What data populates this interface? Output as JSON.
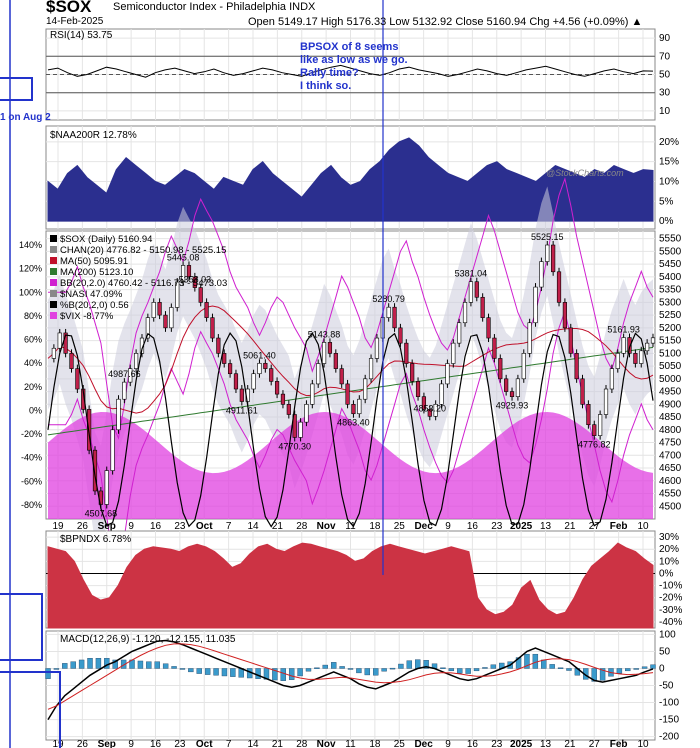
{
  "header": {
    "symbol": "$SOX",
    "name": "Semiconductor Index - Philadelphia  INDX",
    "date": "14-Feb-2025",
    "ohlc": "Open 5149.17  High 5176.33  Low 5132.92  Close 5160.94  Chg +4.56 (+0.09%) ▲"
  },
  "watermark": "@StockCharts.com",
  "annotation": {
    "lines": [
      "BPSOX of 8 seems",
      "like as low as we go.",
      "Rally time?",
      "I think so."
    ],
    "side_note": "1 on Aug 2"
  },
  "colors": {
    "rsi": "#000000",
    "naa": "#2b2f8f",
    "sox_line": "#000000",
    "bull_candle": "#ffffff",
    "bear_candle": "#c0204a",
    "ma50": "#c0102a",
    "ma200": "#2f7a2f",
    "bb": "#d020d0",
    "channel_fill": "#ccccdd",
    "nasi": "#aaaaaa",
    "vix": "#e040e0",
    "bpndx": "#cc3344",
    "macd_hist": "#3a9acb",
    "annot_blue": "#2233cc"
  },
  "x_axis": {
    "labels": [
      "19",
      "26",
      "Sep",
      "9",
      "16",
      "23",
      "Oct",
      "7",
      "14",
      "21",
      "28",
      "Nov",
      "11",
      "18",
      "25",
      "Dec",
      "9",
      "16",
      "23",
      "2025",
      "13",
      "21",
      "27",
      "Feb",
      "10"
    ],
    "bold": [
      "Sep",
      "Oct",
      "Nov",
      "Dec",
      "2025",
      "Feb"
    ]
  },
  "chart_data": [
    {
      "type": "line",
      "panel": "rsi",
      "legend": "RSI(14) 53.75",
      "ylim": [
        0,
        100
      ],
      "y_ticks": [
        10,
        30,
        50,
        70,
        90
      ],
      "reference_levels": [
        30,
        50,
        70
      ],
      "values": [
        55,
        57,
        52,
        48,
        50,
        54,
        58,
        56,
        53,
        50,
        47,
        52,
        55,
        57,
        54,
        51,
        53,
        56,
        52,
        49,
        51,
        54,
        57,
        55,
        52,
        50,
        48,
        52,
        55,
        58,
        60,
        57,
        54,
        51,
        49,
        52,
        56,
        58,
        55,
        53,
        51,
        48,
        50,
        53,
        56,
        54,
        51,
        49,
        52,
        55,
        57,
        59,
        56,
        53,
        50,
        48,
        51,
        54,
        56,
        53,
        51,
        54,
        53.75
      ]
    },
    {
      "type": "area",
      "panel": "naa200r",
      "legend": "$NAA200R 12.78%",
      "ylim": [
        -2,
        24
      ],
      "y_ticks": [
        0,
        5,
        10,
        15,
        20
      ],
      "values": [
        10,
        8,
        12,
        14,
        11,
        9,
        7,
        13,
        16,
        14,
        12,
        10,
        9,
        11,
        13,
        12,
        10,
        8,
        11,
        10,
        9,
        13,
        15,
        12,
        10,
        8,
        6,
        9,
        12,
        14,
        11,
        9,
        10,
        13,
        15,
        18,
        20,
        21,
        19,
        16,
        14,
        12,
        11,
        10,
        12,
        14,
        15,
        13,
        12,
        11,
        10,
        12,
        14,
        13,
        12,
        11,
        13,
        12,
        14,
        13,
        12,
        13,
        12.78
      ]
    },
    {
      "type": "line",
      "panel": "price",
      "legend": [
        "$SOX (Daily) 5160.94",
        "CHAN(20) 4776.82 - 5150.98 - 5525.15",
        "MA(50) 5095.91",
        "MA(200) 5123.10",
        "BB(20,2.0) 4760.42 - 5116.73 - 5473.03",
        "$NASI 47.09%",
        "%B(20,2,0) 0.56",
        "$VIX -8.77%"
      ],
      "ylim": [
        4450,
        5580
      ],
      "y_ticks": [
        4500,
        4550,
        4600,
        4650,
        4700,
        4750,
        4800,
        4850,
        4900,
        4950,
        5000,
        5050,
        5100,
        5150,
        5200,
        5250,
        5300,
        5350,
        5400,
        5450,
        5500,
        5550
      ],
      "left_ticks": [
        "140%",
        "120%",
        "100%",
        "80%",
        "60%",
        "40%",
        "20%",
        "0%",
        "-20%",
        "-40%",
        "-60%",
        "-80%"
      ],
      "close": [
        5080,
        5120,
        5180,
        5100,
        5040,
        4960,
        4880,
        4720,
        4560,
        4507,
        4640,
        4800,
        4920,
        4987,
        5040,
        5100,
        5160,
        5240,
        5300,
        5250,
        5200,
        5280,
        5380,
        5445,
        5400,
        5358,
        5300,
        5240,
        5160,
        5100,
        5060,
        5020,
        4960,
        4911,
        4960,
        5020,
        5061,
        5040,
        4990,
        4940,
        4900,
        4860,
        4770,
        4830,
        4900,
        4980,
        5060,
        5143,
        5100,
        5040,
        4980,
        4900,
        4863,
        4920,
        5000,
        5080,
        5160,
        5240,
        5281,
        5200,
        5140,
        5060,
        4990,
        4930,
        4880,
        4853,
        4900,
        4980,
        5060,
        5140,
        5220,
        5300,
        5381,
        5320,
        5240,
        5160,
        5080,
        5000,
        4950,
        4930,
        5000,
        5100,
        5220,
        5360,
        5460,
        5525,
        5420,
        5300,
        5200,
        5100,
        5000,
        4900,
        4820,
        4777,
        4860,
        4960,
        5040,
        5100,
        5162,
        5100,
        5060,
        5110,
        5140,
        5160.94
      ],
      "price_labels": [
        {
          "text": "4507.68"
        },
        {
          "text": "4987.66"
        },
        {
          "text": "5445.08"
        },
        {
          "text": "5358.03"
        },
        {
          "text": "4911.61"
        },
        {
          "text": "5061.40"
        },
        {
          "text": "4770.30"
        },
        {
          "text": "5143.88"
        },
        {
          "text": "4863.40"
        },
        {
          "text": "4853.20"
        },
        {
          "text": "5280.79"
        },
        {
          "text": "5381.04"
        },
        {
          "text": "4929.93"
        },
        {
          "text": "5525.15"
        },
        {
          "text": "4776.82"
        },
        {
          "text": "5161.93"
        }
      ]
    },
    {
      "type": "area",
      "panel": "bpndx",
      "legend": "$BPNDX 6.78%",
      "ylim": [
        -45,
        35
      ],
      "y_ticks": [
        30,
        20,
        10,
        0,
        -10,
        -20,
        -30,
        -40
      ],
      "values": [
        22,
        20,
        18,
        10,
        -5,
        -18,
        -22,
        -20,
        -10,
        5,
        15,
        20,
        22,
        21,
        20,
        18,
        22,
        24,
        22,
        18,
        12,
        5,
        8,
        16,
        22,
        24,
        20,
        18,
        22,
        25,
        24,
        22,
        20,
        18,
        15,
        10,
        12,
        18,
        22,
        24,
        22,
        20,
        18,
        16,
        18,
        20,
        22,
        20,
        18,
        -20,
        -30,
        -34,
        -32,
        -26,
        -12,
        -6,
        -22,
        -30,
        -34,
        -32,
        -20,
        -5,
        6,
        12,
        18,
        25,
        21,
        18,
        12,
        6.78
      ]
    },
    {
      "type": "line",
      "panel": "macd",
      "legend": [
        "MACD(12,26,9) -1.120, -12.155, 11.035"
      ],
      "ylim": [
        -210,
        110
      ],
      "y_ticks": [
        100,
        50,
        0,
        -50,
        -100,
        -150,
        -200
      ],
      "macd": [
        -150,
        -110,
        -80,
        -60,
        -40,
        -20,
        -5,
        10,
        20,
        35,
        50,
        60,
        70,
        80,
        82,
        78,
        70,
        60,
        50,
        40,
        30,
        20,
        10,
        0,
        -10,
        -20,
        -30,
        -40,
        -50,
        -55,
        -50,
        -40,
        -30,
        -20,
        -10,
        -20,
        -30,
        -45,
        -55,
        -60,
        -50,
        -40,
        -25,
        -10,
        0,
        5,
        0,
        -10,
        -20,
        -30,
        -35,
        -30,
        -20,
        -10,
        0,
        10,
        30,
        50,
        60,
        50,
        40,
        30,
        20,
        0,
        -20,
        -35,
        -40,
        -35,
        -30,
        -25,
        -20,
        -10,
        -1.12
      ],
      "signal": [
        -120,
        -110,
        -95,
        -80,
        -65,
        -50,
        -35,
        -20,
        -5,
        10,
        25,
        38,
        50,
        60,
        68,
        72,
        72,
        70,
        65,
        58,
        50,
        42,
        34,
        26,
        18,
        10,
        2,
        -6,
        -14,
        -22,
        -28,
        -32,
        -32,
        -30,
        -28,
        -26,
        -28,
        -32,
        -36,
        -40,
        -42,
        -41,
        -38,
        -33,
        -26,
        -19,
        -14,
        -12,
        -13,
        -16,
        -20,
        -23,
        -23,
        -21,
        -16,
        -10,
        -2,
        8,
        18,
        25,
        28,
        28,
        26,
        20,
        12,
        3,
        -5,
        -12,
        -16,
        -18,
        -17,
        -15,
        -12.155
      ]
    }
  ]
}
